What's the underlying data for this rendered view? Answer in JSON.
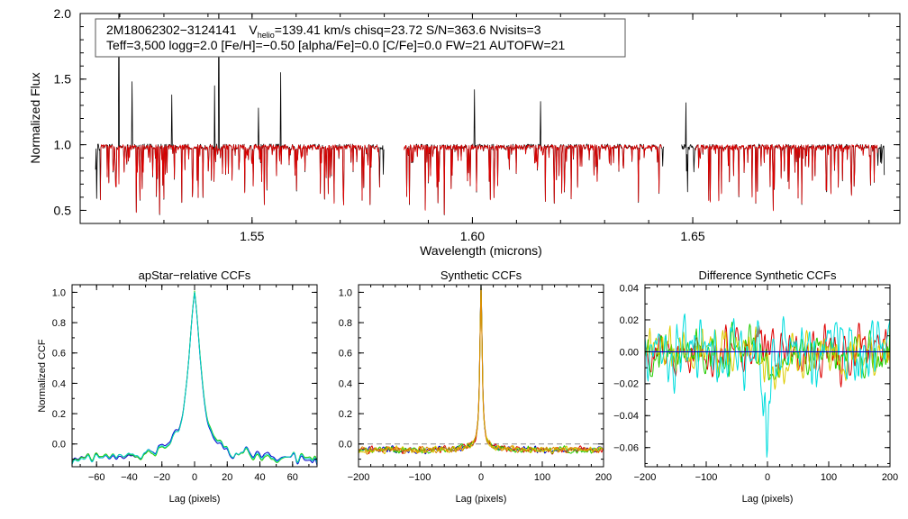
{
  "chart_data": [
    {
      "id": "spectrum",
      "type": "line",
      "xlabel": "Wavelength (microns)",
      "ylabel": "Normalized Flux",
      "xlim": [
        1.511,
        1.697
      ],
      "ylim": [
        0.4,
        2.0
      ],
      "xticks": [
        1.55,
        1.6,
        1.65
      ],
      "xtick_labels": [
        "1.55",
        "1.60",
        "1.65"
      ],
      "yticks": [
        0.5,
        1.0,
        1.5,
        2.0
      ],
      "ytick_labels": [
        "0.5",
        "1.0",
        "1.5",
        "2.0"
      ],
      "annotation": {
        "line1_name": "2M18062302−3124141",
        "line1_v": "V",
        "line1_v_sub": "helio",
        "line1_rest": "=139.41 km/s  chisq=23.72  S/N=363.6  Nvisits=3",
        "line2": "Teff=3,500 logg=2.0 [Fe/H]=−0.50 [alpha/Fe]=0.0 [C/Fe]=0.0 FW=21 AUTOFW=21"
      },
      "chips": [
        [
          1.5145,
          1.58
        ],
        [
          1.5845,
          1.6435
        ],
        [
          1.6475,
          1.6935
        ]
      ],
      "model_ranges": [
        [
          1.5155,
          1.579
        ],
        [
          1.5845,
          1.643
        ],
        [
          1.6505,
          1.692
        ]
      ],
      "emission_lines": [
        [
          1.5198,
          2.3
        ],
        [
          1.5228,
          1.48
        ],
        [
          1.5318,
          1.38
        ],
        [
          1.5415,
          1.45
        ],
        [
          1.5425,
          2.3
        ],
        [
          1.5515,
          1.28
        ],
        [
          1.5565,
          1.55
        ],
        [
          1.6005,
          1.42
        ],
        [
          1.6155,
          1.33
        ],
        [
          1.6485,
          1.32
        ]
      ],
      "series": [
        {
          "name": "observed",
          "color": "#000000"
        },
        {
          "name": "model",
          "color": "#dd0000"
        }
      ]
    },
    {
      "id": "apstar",
      "type": "line",
      "title": "apStar−relative CCFs",
      "xlabel": "Lag (pixels)",
      "ylabel": "Normalized CCF",
      "xlim": [
        -75,
        75
      ],
      "ylim": [
        -0.15,
        1.05
      ],
      "xticks": [
        -60,
        -40,
        -20,
        0,
        20,
        40,
        60
      ],
      "xtick_labels": [
        "−60",
        "−40",
        "−20",
        "0",
        "20",
        "40",
        "60"
      ],
      "yticks": [
        0.0,
        0.2,
        0.4,
        0.6,
        0.8,
        1.0
      ],
      "ytick_labels": [
        "0.0",
        "0.2",
        "0.4",
        "0.6",
        "0.8",
        "1.0"
      ],
      "series": [
        {
          "name": "visit-1",
          "color": "#0000cc"
        },
        {
          "name": "visit-2",
          "color": "#22cc00"
        },
        {
          "name": "visit-3",
          "color": "#00cccc"
        }
      ]
    },
    {
      "id": "synth",
      "type": "line",
      "title": "Synthetic CCFs",
      "xlabel": "Lag (pixels)",
      "xlim": [
        -200,
        200
      ],
      "ylim": [
        -0.15,
        1.05
      ],
      "xticks": [
        -200,
        -100,
        0,
        100,
        200
      ],
      "xtick_labels": [
        "−200",
        "−100",
        "0",
        "100",
        "200"
      ],
      "yticks": [
        0.0,
        0.2,
        0.4,
        0.6,
        0.8,
        1.0
      ],
      "ytick_labels": [
        "0.0",
        "0.2",
        "0.4",
        "0.6",
        "0.8",
        "1.0"
      ],
      "series": [
        {
          "name": "blue",
          "color": "#0000cc"
        },
        {
          "name": "red",
          "color": "#dd0000"
        },
        {
          "name": "green",
          "color": "#22cc00"
        },
        {
          "name": "yellow",
          "color": "#ddcc00"
        },
        {
          "name": "orange",
          "color": "#dd8800"
        }
      ]
    },
    {
      "id": "diff",
      "type": "line",
      "title": "Difference Synthetic CCFs",
      "xlabel": "Lag (pixels)",
      "xlim": [
        -200,
        200
      ],
      "ylim": [
        -0.072,
        0.042
      ],
      "xticks": [
        -200,
        -100,
        0,
        100,
        200
      ],
      "xtick_labels": [
        "−200",
        "−100",
        "0",
        "100",
        "200"
      ],
      "yticks": [
        0.04,
        0.02,
        0.0,
        -0.02,
        -0.04,
        -0.06
      ],
      "ytick_labels": [
        "0.04",
        "0.02",
        "0.00",
        "−0.02",
        "−0.04",
        "−0.06"
      ],
      "series": [
        {
          "name": "red",
          "color": "#dd0000"
        },
        {
          "name": "green",
          "color": "#22cc00"
        },
        {
          "name": "yellow",
          "color": "#ddcc00"
        },
        {
          "name": "cyan",
          "color": "#00dddd"
        },
        {
          "name": "zero-line",
          "color": "#0000cc"
        }
      ]
    }
  ]
}
